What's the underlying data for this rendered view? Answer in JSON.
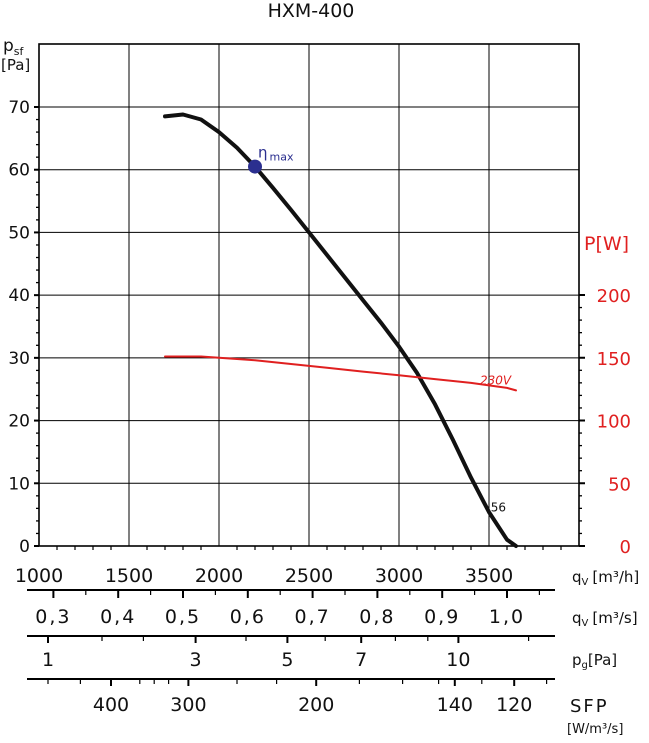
{
  "chart_data": {
    "type": "line",
    "title": "HXM-400",
    "colors": {
      "curve": "#111111",
      "power": "#e02020",
      "eta_marker": "#2b2f8f",
      "grid": "#000000"
    },
    "left_axis": {
      "label_main": "p",
      "label_sub": "sf",
      "unit": "[Pa]",
      "ylim": [
        0,
        70
      ],
      "ticks": [
        0,
        10,
        20,
        30,
        40,
        50,
        60,
        70
      ]
    },
    "right_axis": {
      "label": "P[W]",
      "ylim": [
        0,
        200
      ],
      "ticks": [
        0,
        50,
        100,
        150,
        200
      ]
    },
    "x_axis": {
      "xlim": [
        1000,
        4000
      ],
      "ticks": [
        1000,
        1500,
        2000,
        2500,
        3000,
        3500
      ],
      "label_q": "q",
      "label_sub": "V",
      "unit": "[m³/h]"
    },
    "scale_ms": {
      "label_q": "q",
      "label_sub": "V",
      "unit": "[m³/s]",
      "ticks": [
        {
          "label": "0,3",
          "value": 0.3
        },
        {
          "label": "0,4",
          "value": 0.4
        },
        {
          "label": "0,5",
          "value": 0.5
        },
        {
          "label": "0,6",
          "value": 0.6
        },
        {
          "label": "0,7",
          "value": 0.7
        },
        {
          "label": "0,8",
          "value": 0.8
        },
        {
          "label": "0,9",
          "value": 0.9
        },
        {
          "label": "1,0",
          "value": 1.0
        }
      ]
    },
    "scale_pg": {
      "label_p": "p",
      "label_sub": "g",
      "unit": "[Pa]",
      "ticks": [
        {
          "label": "1",
          "x": 1050
        },
        {
          "label": "3",
          "x": 1870
        },
        {
          "label": "5",
          "x": 2380
        },
        {
          "label": "7",
          "x": 2790
        },
        {
          "label": "10",
          "x": 3330
        }
      ],
      "minor_x": [
        1350,
        1580,
        2150,
        2590,
        2980,
        3160,
        3720
      ]
    },
    "scale_sfp": {
      "label": "SFP",
      "unit": "[W/m³/s]",
      "ticks": [
        {
          "label": "400",
          "x": 1400
        },
        {
          "label": "300",
          "x": 1830
        },
        {
          "label": "200",
          "x": 2540
        },
        {
          "label": "140",
          "x": 3310
        },
        {
          "label": "120",
          "x": 3640
        }
      ],
      "minor_x": [
        1050,
        1230,
        1560,
        1640,
        1720,
        2100,
        2320,
        2780,
        3020,
        3220,
        3460,
        3820
      ]
    },
    "series": [
      {
        "name": "56",
        "axis": "left",
        "x": [
          1700,
          1800,
          1900,
          2000,
          2100,
          2200,
          2300,
          2400,
          2500,
          2600,
          2700,
          2800,
          2900,
          3000,
          3100,
          3200,
          3300,
          3400,
          3500,
          3600,
          3650
        ],
        "y": [
          68.5,
          68.8,
          68.0,
          66.0,
          63.5,
          60.5,
          57.1,
          53.6,
          50.0,
          46.4,
          42.8,
          39.2,
          35.6,
          31.8,
          27.6,
          22.6,
          16.9,
          10.9,
          5.4,
          1.0,
          0.0
        ]
      },
      {
        "name": "230V",
        "axis": "right",
        "x": [
          1700,
          1800,
          1900,
          2000,
          2200,
          2400,
          2600,
          2800,
          3000,
          3200,
          3400,
          3600,
          3650
        ],
        "y": [
          151,
          151,
          151,
          150,
          148,
          145,
          142,
          139,
          136,
          133,
          130,
          126,
          124
        ]
      }
    ],
    "eta_max": {
      "x": 2200,
      "y": 60.5,
      "label": "η",
      "label_sub": "max"
    }
  }
}
